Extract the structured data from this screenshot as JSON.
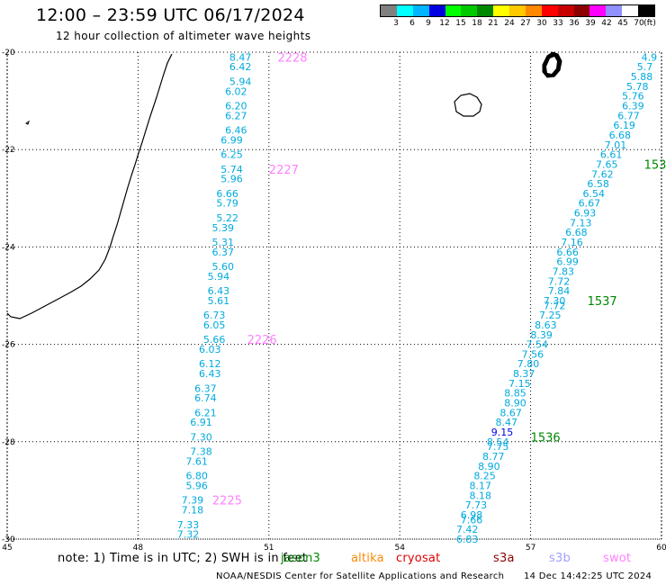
{
  "title": "12:00 – 23:59 UTC 06/17/2024",
  "subtitle": "12 hour collection of altimeter wave heights",
  "legend": {
    "labels": [
      "3",
      "6",
      "9",
      "12",
      "15",
      "18",
      "21",
      "24",
      "27",
      "30",
      "33",
      "36",
      "39",
      "42",
      "45",
      "70",
      "(ft)"
    ],
    "colors": [
      "#808080",
      "#00ffff",
      "#00b4ff",
      "#0000e0",
      "#00ff00",
      "#00c800",
      "#008800",
      "#ffff00",
      "#ffc800",
      "#ff8800",
      "#ff0000",
      "#c80000",
      "#8c0000",
      "#ff00ff",
      "#9090ff",
      "#ffffff",
      "#000000"
    ]
  },
  "axes": {
    "lon_ticks": [
      "45",
      "48",
      "51",
      "54",
      "57",
      "60"
    ],
    "lat_ticks": [
      "-20",
      "-22",
      "-24",
      "-26",
      "-28",
      "-30"
    ],
    "lon_range": [
      45,
      60
    ],
    "lat_range": [
      -30,
      -20
    ]
  },
  "passes": [
    {
      "label": "2228",
      "color": "#ff80ff",
      "lon": 51.2,
      "lat": -20.1
    },
    {
      "label": "2227",
      "color": "#ff80ff",
      "lon": 51.0,
      "lat": -22.4
    },
    {
      "label": "2226",
      "color": "#ff80ff",
      "lon": 50.5,
      "lat": -25.9
    },
    {
      "label": "2225",
      "color": "#ff80ff",
      "lon": 49.7,
      "lat": -29.2
    },
    {
      "label": "153",
      "color": "#008800",
      "lon": 59.6,
      "lat": -22.3
    },
    {
      "label": "1537",
      "color": "#008800",
      "lon": 58.3,
      "lat": -25.1
    },
    {
      "label": "1536",
      "color": "#008800",
      "lon": 57.0,
      "lat": -27.9
    }
  ],
  "track_west": {
    "color": "#00aadd",
    "points": [
      {
        "lat": -20.1,
        "lon": 50.6,
        "v": "8.47"
      },
      {
        "lat": -20.3,
        "lon": 50.6,
        "v": "6.42"
      },
      {
        "lat": -20.6,
        "lon": 50.6,
        "v": "5.94"
      },
      {
        "lat": -20.8,
        "lon": 50.5,
        "v": "6.02"
      },
      {
        "lat": -21.1,
        "lon": 50.5,
        "v": "6.20"
      },
      {
        "lat": -21.3,
        "lon": 50.5,
        "v": "6.27"
      },
      {
        "lat": -21.6,
        "lon": 50.5,
        "v": "6.46"
      },
      {
        "lat": -21.8,
        "lon": 50.4,
        "v": "6.99"
      },
      {
        "lat": -22.1,
        "lon": 50.4,
        "v": "6.25"
      },
      {
        "lat": -22.4,
        "lon": 50.4,
        "v": "5.74"
      },
      {
        "lat": -22.6,
        "lon": 50.4,
        "v": "5.96"
      },
      {
        "lat": -22.9,
        "lon": 50.3,
        "v": "6.66"
      },
      {
        "lat": -23.1,
        "lon": 50.3,
        "v": "5.79"
      },
      {
        "lat": -23.4,
        "lon": 50.3,
        "v": "5.22"
      },
      {
        "lat": -23.6,
        "lon": 50.2,
        "v": "5.39"
      },
      {
        "lat": -23.9,
        "lon": 50.2,
        "v": "5.31"
      },
      {
        "lat": -24.1,
        "lon": 50.2,
        "v": "6.37"
      },
      {
        "lat": -24.4,
        "lon": 50.2,
        "v": "5.60"
      },
      {
        "lat": -24.6,
        "lon": 50.1,
        "v": "5.94"
      },
      {
        "lat": -24.9,
        "lon": 50.1,
        "v": "6.43"
      },
      {
        "lat": -25.1,
        "lon": 50.1,
        "v": "5.61"
      },
      {
        "lat": -25.4,
        "lon": 50.0,
        "v": "6.73"
      },
      {
        "lat": -25.6,
        "lon": 50.0,
        "v": "6.05"
      },
      {
        "lat": -25.9,
        "lon": 50.0,
        "v": "5.66"
      },
      {
        "lat": -26.1,
        "lon": 49.9,
        "v": "6.03"
      },
      {
        "lat": -26.4,
        "lon": 49.9,
        "v": "6.12"
      },
      {
        "lat": -26.6,
        "lon": 49.9,
        "v": "6.43"
      },
      {
        "lat": -26.9,
        "lon": 49.8,
        "v": "6.37"
      },
      {
        "lat": -27.1,
        "lon": 49.8,
        "v": "6.74"
      },
      {
        "lat": -27.4,
        "lon": 49.8,
        "v": "6.21"
      },
      {
        "lat": -27.6,
        "lon": 49.7,
        "v": "6.91"
      },
      {
        "lat": -27.9,
        "lon": 49.7,
        "v": "7.30"
      },
      {
        "lat": -28.2,
        "lon": 49.7,
        "v": "7.38"
      },
      {
        "lat": -28.4,
        "lon": 49.6,
        "v": "7.61"
      },
      {
        "lat": -28.7,
        "lon": 49.6,
        "v": "6.80"
      },
      {
        "lat": -28.9,
        "lon": 49.6,
        "v": "5.96"
      },
      {
        "lat": -29.2,
        "lon": 49.5,
        "v": "7.39"
      },
      {
        "lat": -29.4,
        "lon": 49.5,
        "v": "7.18"
      },
      {
        "lat": -29.7,
        "lon": 49.4,
        "v": "7.33"
      },
      {
        "lat": -29.9,
        "lon": 49.4,
        "v": "7.32"
      }
    ]
  },
  "track_east": {
    "color": "#00aadd",
    "points": [
      {
        "lat": -20.1,
        "lon": 59.9,
        "v": "4.9"
      },
      {
        "lat": -20.3,
        "lon": 59.8,
        "v": "5.7"
      },
      {
        "lat": -20.5,
        "lon": 59.8,
        "v": "5.88"
      },
      {
        "lat": -20.7,
        "lon": 59.7,
        "v": "5.78"
      },
      {
        "lat": -20.9,
        "lon": 59.6,
        "v": "5.76"
      },
      {
        "lat": -21.1,
        "lon": 59.6,
        "v": "6.39"
      },
      {
        "lat": -21.3,
        "lon": 59.5,
        "v": "6.77"
      },
      {
        "lat": -21.5,
        "lon": 59.4,
        "v": "6.19"
      },
      {
        "lat": -21.7,
        "lon": 59.3,
        "v": "6.68"
      },
      {
        "lat": -21.9,
        "lon": 59.2,
        "v": "7.01"
      },
      {
        "lat": -22.1,
        "lon": 59.1,
        "v": "6.61"
      },
      {
        "lat": -22.3,
        "lon": 59.0,
        "v": "7.65"
      },
      {
        "lat": -22.5,
        "lon": 58.9,
        "v": "7.62"
      },
      {
        "lat": -22.7,
        "lon": 58.8,
        "v": "6.58"
      },
      {
        "lat": -22.9,
        "lon": 58.7,
        "v": "6.54"
      },
      {
        "lat": -23.1,
        "lon": 58.6,
        "v": "6.67"
      },
      {
        "lat": -23.3,
        "lon": 58.5,
        "v": "6.93"
      },
      {
        "lat": -23.5,
        "lon": 58.4,
        "v": "7.13"
      },
      {
        "lat": -23.7,
        "lon": 58.3,
        "v": "6.68"
      },
      {
        "lat": -23.9,
        "lon": 58.2,
        "v": "7.16"
      },
      {
        "lat": -24.1,
        "lon": 58.1,
        "v": "6.66"
      },
      {
        "lat": -24.3,
        "lon": 58.1,
        "v": "6.99"
      },
      {
        "lat": -24.5,
        "lon": 58.0,
        "v": "7.83"
      },
      {
        "lat": -24.7,
        "lon": 57.9,
        "v": "7.72"
      },
      {
        "lat": -24.9,
        "lon": 57.9,
        "v": "7.84"
      },
      {
        "lat": -25.1,
        "lon": 57.8,
        "v": "7.30"
      },
      {
        "lat": -25.2,
        "lon": 57.8,
        "v": "7.72"
      },
      {
        "lat": -25.4,
        "lon": 57.7,
        "v": "7.25"
      },
      {
        "lat": -25.6,
        "lon": 57.6,
        "v": "8.63"
      },
      {
        "lat": -25.8,
        "lon": 57.5,
        "v": "8.39"
      },
      {
        "lat": -26.0,
        "lon": 57.4,
        "v": "7.54"
      },
      {
        "lat": -26.2,
        "lon": 57.3,
        "v": "7.56"
      },
      {
        "lat": -26.4,
        "lon": 57.2,
        "v": "7.80"
      },
      {
        "lat": -26.6,
        "lon": 57.1,
        "v": "8.37"
      },
      {
        "lat": -26.8,
        "lon": 57.0,
        "v": "7.15"
      },
      {
        "lat": -27.0,
        "lon": 56.9,
        "v": "8.85"
      },
      {
        "lat": -27.2,
        "lon": 56.9,
        "v": "8.90"
      },
      {
        "lat": -27.4,
        "lon": 56.8,
        "v": "8.67"
      },
      {
        "lat": -27.6,
        "lon": 56.7,
        "v": "8.47"
      },
      {
        "lat": -27.8,
        "lon": 56.6,
        "v": "9.15"
      },
      {
        "lat": -28.0,
        "lon": 56.5,
        "v": "8.54"
      },
      {
        "lat": -28.1,
        "lon": 56.5,
        "v": "7.75"
      },
      {
        "lat": -28.3,
        "lon": 56.4,
        "v": "8.77"
      },
      {
        "lat": -28.5,
        "lon": 56.3,
        "v": "8.90"
      },
      {
        "lat": -28.7,
        "lon": 56.2,
        "v": "8.25"
      },
      {
        "lat": -28.9,
        "lon": 56.1,
        "v": "8.17"
      },
      {
        "lat": -29.1,
        "lon": 56.1,
        "v": "8.18"
      },
      {
        "lat": -29.3,
        "lon": 56.0,
        "v": "7.73"
      },
      {
        "lat": -29.5,
        "lon": 55.9,
        "v": "6.98"
      },
      {
        "lat": -29.6,
        "lon": 55.9,
        "v": "7.66"
      },
      {
        "lat": -29.8,
        "lon": 55.8,
        "v": "7.42"
      },
      {
        "lat": -30.0,
        "lon": 55.8,
        "v": "6.83"
      }
    ]
  },
  "footnote": "note: 1) Time is in UTC; 2) SWH is in feet",
  "satellites": [
    {
      "name": "jason3",
      "color": "#008800"
    },
    {
      "name": "altika",
      "color": "#ff8800"
    },
    {
      "name": "cryosat",
      "color": "#e00000"
    },
    {
      "name": "s3a",
      "color": "#8c0000"
    },
    {
      "name": "s3b",
      "color": "#a0a0ff"
    },
    {
      "name": "swot",
      "color": "#ff80ff"
    }
  ],
  "credit": "NOAA/NESDIS Center for Satellite Applications and Research",
  "timestamp": "14 Dec 14:42:25 UTC 2024"
}
